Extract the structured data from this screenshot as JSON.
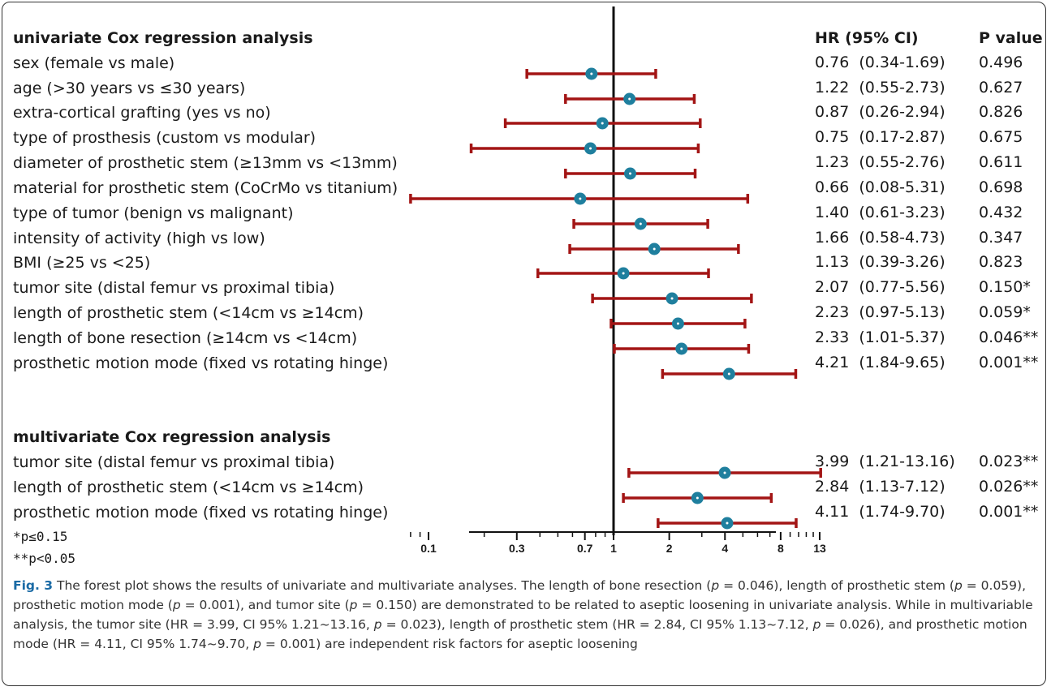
{
  "chart_data": {
    "type": "forest",
    "x_scale": "log",
    "xlim": [
      0.08,
      14
    ],
    "x_ticks": [
      0.1,
      0.3,
      0.7,
      1,
      2,
      4,
      8,
      13
    ],
    "x_tick_labels": [
      "0.1",
      "0.3",
      "0.7",
      "1",
      "2",
      "4",
      "8",
      "13"
    ],
    "reference_line": 1,
    "colors": {
      "ci_line": "#a31515",
      "point": "#1f7f9e"
    },
    "column_headers": {
      "hr": "HR  (95% CI)",
      "p": "P value"
    },
    "sections": [
      {
        "title": "univariate Cox regression analysis",
        "rows": [
          {
            "label": "sex (female vs male)",
            "hr": 0.76,
            "lo": 0.34,
            "hi": 1.69,
            "hr_text": "0.76  (0.34-1.69)",
            "p_text": "0.496"
          },
          {
            "label": "age (>30 years vs ≤30 years)",
            "hr": 1.22,
            "lo": 0.55,
            "hi": 2.73,
            "hr_text": "1.22  (0.55-2.73)",
            "p_text": "0.627"
          },
          {
            "label": "extra-cortical grafting (yes vs no)",
            "hr": 0.87,
            "lo": 0.26,
            "hi": 2.94,
            "hr_text": "0.87  (0.26-2.94)",
            "p_text": "0.826"
          },
          {
            "label": "type of prosthesis (custom vs modular)",
            "hr": 0.75,
            "lo": 0.17,
            "hi": 2.87,
            "hr_text": "0.75  (0.17-2.87)",
            "p_text": "0.675"
          },
          {
            "label": "diameter of prosthetic stem (≥13mm vs <13mm)",
            "hr": 1.23,
            "lo": 0.55,
            "hi": 2.76,
            "hr_text": "1.23  (0.55-2.76)",
            "p_text": "0.611"
          },
          {
            "label": "material for prosthetic stem (CoCrMo vs titanium)",
            "hr": 0.66,
            "lo": 0.08,
            "hi": 5.31,
            "hr_text": "0.66  (0.08-5.31)",
            "p_text": "0.698"
          },
          {
            "label": "type of tumor (benign vs malignant)",
            "hr": 1.4,
            "lo": 0.61,
            "hi": 3.23,
            "hr_text": "1.40  (0.61-3.23)",
            "p_text": "0.432"
          },
          {
            "label": "intensity of activity (high vs low)",
            "hr": 1.66,
            "lo": 0.58,
            "hi": 4.73,
            "hr_text": "1.66  (0.58-4.73)",
            "p_text": "0.347"
          },
          {
            "label": "BMI (≥25 vs <25)",
            "hr": 1.13,
            "lo": 0.39,
            "hi": 3.26,
            "hr_text": "1.13  (0.39-3.26)",
            "p_text": "0.823"
          },
          {
            "label": "tumor site (distal femur vs proximal tibia)",
            "hr": 2.07,
            "lo": 0.77,
            "hi": 5.56,
            "hr_text": "2.07  (0.77-5.56)",
            "p_text": "0.150*"
          },
          {
            "label": "length of prosthetic stem (<14cm vs ≥14cm)",
            "hr": 2.23,
            "lo": 0.97,
            "hi": 5.13,
            "hr_text": "2.23  (0.97-5.13)",
            "p_text": "0.059*"
          },
          {
            "label": "length of bone resection (≥14cm vs <14cm)",
            "hr": 2.33,
            "lo": 1.01,
            "hi": 5.37,
            "hr_text": "2.33  (1.01-5.37)",
            "p_text": "0.046**"
          },
          {
            "label": "prosthetic motion mode (fixed vs rotating hinge)",
            "hr": 4.21,
            "lo": 1.84,
            "hi": 9.65,
            "hr_text": "4.21  (1.84-9.65)",
            "p_text": "0.001**"
          }
        ]
      },
      {
        "title": "multivariate Cox regression analysis",
        "rows": [
          {
            "label": "tumor site (distal femur vs proximal tibia)",
            "hr": 3.99,
            "lo": 1.21,
            "hi": 13.16,
            "hr_text": "3.99  (1.21-13.16)",
            "p_text": "0.023**"
          },
          {
            "label": "length of prosthetic stem (<14cm vs ≥14cm)",
            "hr": 2.84,
            "lo": 1.13,
            "hi": 7.12,
            "hr_text": "2.84  (1.13-7.12)",
            "p_text": "0.026**"
          },
          {
            "label": "prosthetic motion mode (fixed vs rotating hinge)",
            "hr": 4.11,
            "lo": 1.74,
            "hi": 9.7,
            "hr_text": "4.11  (1.74-9.70)",
            "p_text": "0.001**"
          }
        ]
      }
    ],
    "footnotes": [
      "*p≤0.15",
      "**p<0.05"
    ]
  },
  "caption": {
    "figure_label": "Fig. 3",
    "segments": [
      " The forest plot shows the results of univariate and multivariate analyses. The length of bone resection (",
      "p",
      " = 0.046), length of prosthetic stem (",
      "p",
      " = 0.059), prosthetic motion mode (",
      "p",
      " = 0.001), and tumor site (",
      "p",
      " = 0.150) are demonstrated to be related to aseptic loosening in univariate analysis. While in multivariable analysis, the tumor site (HR = 3.99, CI 95% 1.21~13.16, ",
      "p",
      " = 0.023), length of prosthetic stem (HR = 2.84, CI 95% 1.13~7.12, ",
      "p",
      " = 0.026), and prosthetic motion mode (HR = 4.11, CI 95% 1.74~9.70, ",
      "p",
      " = 0.001) are independent risk factors for aseptic loosening"
    ]
  }
}
